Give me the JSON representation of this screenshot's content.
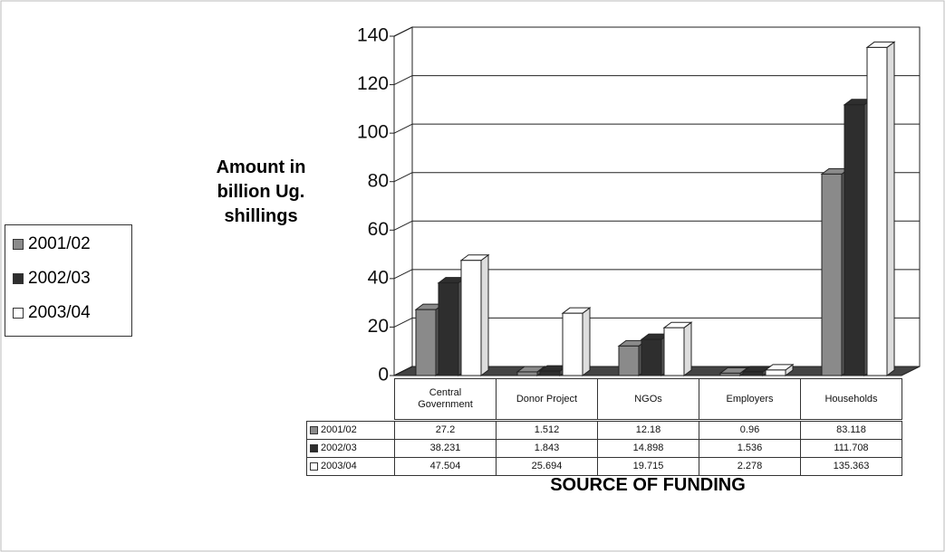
{
  "chart_data": {
    "type": "bar",
    "categories": [
      "Central Government",
      "Donor Project",
      "NGOs",
      "Employers",
      "Households"
    ],
    "series": [
      {
        "name": "2001/02",
        "color": "#8a8a8a",
        "values": [
          27.2,
          1.512,
          12.18,
          0.96,
          83.118
        ]
      },
      {
        "name": "2002/03",
        "color": "#2e2e2e",
        "values": [
          38.231,
          1.843,
          14.898,
          1.536,
          111.708
        ]
      },
      {
        "name": "2003/04",
        "color": "#ffffff",
        "values": [
          47.504,
          25.694,
          19.715,
          2.278,
          135.363
        ]
      }
    ],
    "y_label": "Amount in billion Ug. shillings",
    "x_label": "SOURCE OF FUNDING",
    "ylim": [
      0,
      140
    ],
    "yticks": [
      0,
      20,
      40,
      60,
      80,
      100,
      120,
      140
    ],
    "grid": true
  }
}
